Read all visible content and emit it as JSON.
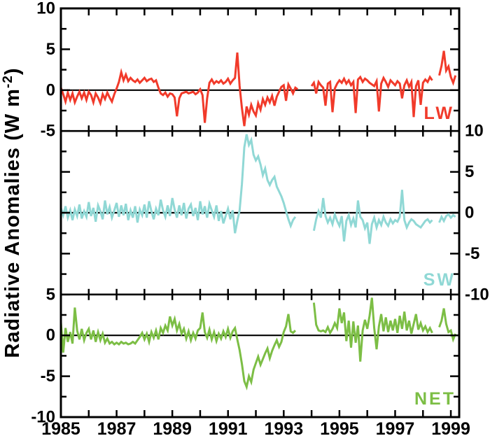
{
  "figure": {
    "background": "#ffffff"
  },
  "chart_data": {
    "type": "line",
    "title": "",
    "xlabel": "",
    "ylabel_parts": {
      "prefix": "Radiative Anomalies (W m",
      "superscript": "-2",
      "suffix": ")"
    },
    "x_start": 1985.0,
    "x_step_years": 0.0833333,
    "x_range": [
      1985.0,
      1999.3
    ],
    "x_major_tick_labels": [
      "1985",
      "1987",
      "1989",
      "1991",
      "1993",
      "1995",
      "1997",
      "1999"
    ],
    "x_major_ticks": [
      1985,
      1987,
      1989,
      1991,
      1993,
      1995,
      1997,
      1999
    ],
    "x_minor_tick_interval_years": 1,
    "grid": false,
    "legend_position": "inside-bottom-right-per-panel",
    "frame_color": "#000000",
    "zero_line": true,
    "panels": [
      {
        "name": "LW",
        "color": "#f13a2a",
        "y_min": -5,
        "y_max": 10,
        "y_major_tick_interval": 5,
        "y_minor_tick_interval": 2.5,
        "axis_label_side": "left",
        "axis_labeled_values": [
          10,
          5,
          0,
          -5
        ],
        "values": [
          0.3,
          -0.5,
          -1.4,
          -0.3,
          -1.2,
          -0.4,
          -1.5,
          -0.8,
          -0.2,
          -1.0,
          -0.3,
          -1.2,
          -0.2,
          -0.6,
          -1.5,
          -0.4,
          -0.9,
          -1.6,
          -0.5,
          -1.1,
          -0.3,
          -0.9,
          -1.4,
          -0.5,
          0.2,
          1.0,
          2.2,
          1.2,
          1.9,
          1.1,
          1.5,
          1.2,
          1.0,
          1.3,
          0.9,
          1.2,
          1.5,
          1.1,
          1.3,
          1.4,
          1.0,
          1.2,
          0.3,
          -0.4,
          -0.6,
          -0.3,
          -0.8,
          -0.4,
          -0.5,
          -0.9,
          -3.2,
          -1.0,
          -0.4,
          -0.3,
          -0.2,
          -0.4,
          -0.3,
          -0.2,
          -0.5,
          -0.3,
          0.1,
          -0.6,
          -4.0,
          -1.0,
          0.9,
          1.3,
          0.8,
          1.1,
          0.9,
          1.2,
          0.8,
          1.0,
          1.4,
          0.8,
          1.2,
          1.5,
          4.6,
          0.5,
          -2.2,
          -4.4,
          -2.0,
          -3.0,
          -1.8,
          -2.6,
          -3.1,
          -1.6,
          -2.4,
          -1.1,
          -1.8,
          -0.9,
          -1.5,
          -0.7,
          -1.9,
          -0.8,
          -0.2,
          0.4,
          0.6,
          -1.3,
          0.7,
          0.2,
          -0.4,
          0.3,
          0.1,
          null,
          null,
          null,
          null,
          null,
          0.5,
          0.9,
          -0.4,
          1.0,
          0.6,
          0.3,
          -1.9,
          0.8,
          1.0,
          -2.7,
          0.2,
          0.8,
          1.2,
          0.9,
          1.4,
          0.8,
          1.2,
          0.6,
          1.0,
          -2.8,
          1.3,
          1.6,
          1.0,
          1.4,
          1.2,
          0.9,
          0.7,
          0.5,
          1.1,
          -2.6,
          0.8,
          1.5,
          1.0,
          0.4,
          1.2,
          0.9,
          0.6,
          1.1,
          0.8,
          -1.0,
          0.6,
          1.2,
          0.4,
          1.0,
          -3.3,
          0.5,
          1.2,
          -1.8,
          0.9,
          1.3,
          1.0,
          1.6,
          1.2,
          null,
          null,
          1.8,
          3.0,
          4.8,
          2.4,
          2.9,
          1.6,
          0.9,
          1.8
        ]
      },
      {
        "name": "SW",
        "color": "#90d8d5",
        "y_min": -10,
        "y_max": 10,
        "y_major_tick_interval": 5,
        "y_minor_tick_interval": 2.5,
        "axis_label_side": "right",
        "axis_labeled_values": [
          10,
          5,
          0,
          -5,
          -10
        ],
        "values": [
          0.6,
          -0.3,
          0.8,
          -0.6,
          0.3,
          -0.9,
          0.4,
          -0.4,
          1.0,
          -0.7,
          0.2,
          -0.5,
          1.3,
          -0.4,
          0.6,
          -1.1,
          0.9,
          0.2,
          -0.8,
          1.5,
          -0.2,
          0.7,
          -0.6,
          0.3,
          1.2,
          -0.5,
          0.9,
          -0.3,
          1.1,
          -0.9,
          0.3,
          -0.6,
          0.8,
          -1.2,
          0.4,
          -0.3,
          1.0,
          -0.6,
          1.4,
          0.2,
          -0.8,
          0.5,
          -0.3,
          1.6,
          0.3,
          -0.5,
          0.9,
          -0.4,
          1.8,
          0.4,
          -0.6,
          0.9,
          -0.3,
          1.2,
          -0.7,
          0.5,
          1.0,
          -0.4,
          0.6,
          -0.9,
          1.4,
          -0.2,
          0.8,
          -0.6,
          1.1,
          0.3,
          -0.5,
          0.9,
          -1.0,
          0.2,
          -1.3,
          -0.4,
          0.5,
          -0.8,
          0.3,
          -2.5,
          -1.0,
          0.3,
          3.5,
          8.0,
          9.6,
          8.3,
          8.9,
          7.1,
          6.4,
          6.9,
          5.9,
          4.6,
          5.4,
          4.0,
          3.4,
          4.0,
          4.4,
          3.2,
          2.6,
          2.0,
          1.2,
          0.2,
          -0.8,
          -1.6,
          -0.9,
          -0.5,
          null,
          null,
          null,
          null,
          null,
          null,
          null,
          -2.2,
          -0.8,
          0.2,
          -0.6,
          1.8,
          -0.4,
          -1.2,
          -0.6,
          -1.4,
          -0.2,
          -1.0,
          -1.6,
          -0.4,
          -3.5,
          -1.0,
          -0.3,
          -1.5,
          -0.7,
          -1.8,
          1.5,
          -0.5,
          -0.9,
          -1.9,
          -1.2,
          -3.8,
          -1.4,
          -0.6,
          -1.8,
          -0.9,
          -1.5,
          -0.5,
          -1.2,
          -1.6,
          -0.8,
          -1.3,
          -0.9,
          -1.1,
          -0.5,
          2.8,
          -0.9,
          -1.8,
          -1.2,
          -0.8,
          -1.0,
          -1.4,
          -1.6,
          -1.8,
          -1.4,
          -1.0,
          -0.8,
          -1.2,
          -0.9,
          null,
          null,
          -1.2,
          -0.5,
          -1.0,
          -0.4,
          -0.2,
          -0.6,
          -0.3,
          -0.5
        ]
      },
      {
        "name": "NET",
        "color": "#7cbe45",
        "y_min": -10,
        "y_max": 5,
        "y_major_tick_interval": 5,
        "y_minor_tick_interval": 2.5,
        "axis_label_side": "left",
        "axis_labeled_values": [
          5,
          0,
          -5,
          -10
        ],
        "values": [
          1.6,
          -2.1,
          0.9,
          -0.8,
          0.4,
          -1.0,
          3.4,
          0.6,
          -0.5,
          0.8,
          -0.6,
          0.3,
          0.8,
          -0.5,
          0.6,
          -0.8,
          0.4,
          -0.6,
          0.2,
          -0.9,
          -0.4,
          -1.0,
          -0.8,
          -1.1,
          -0.9,
          -1.1,
          -0.8,
          -1.0,
          -0.9,
          -1.1,
          -1.0,
          -0.8,
          -1.0,
          -0.6,
          -0.2,
          0.3,
          -0.5,
          0.2,
          -0.8,
          0.4,
          -0.3,
          0.6,
          -0.5,
          0.9,
          0.3,
          1.2,
          0.6,
          2.3,
          1.2,
          2.0,
          0.6,
          1.4,
          0.2,
          0.8,
          -0.4,
          0.5,
          -0.6,
          0.3,
          -0.4,
          0.6,
          0.9,
          2.8,
          0.4,
          -0.3,
          0.7,
          -0.5,
          0.4,
          -0.7,
          0.2,
          -0.4,
          0.5,
          -0.2,
          0.8,
          -0.3,
          0.5,
          0.9,
          -0.5,
          -1.8,
          -3.5,
          -5.6,
          -6.3,
          -5.0,
          -5.7,
          -4.2,
          -3.4,
          -2.6,
          -3.6,
          -2.9,
          -2.2,
          -1.6,
          -2.8,
          -1.9,
          -1.2,
          -0.6,
          -1.4,
          -0.8,
          0.4,
          1.1,
          2.6,
          0.5,
          0.3,
          0.6,
          null,
          null,
          null,
          null,
          null,
          null,
          null,
          4.0,
          1.3,
          0.6,
          0.5,
          0.6,
          0.4,
          1.0,
          0.3,
          0.8,
          1.5,
          0.9,
          3.3,
          1.5,
          2.8,
          -0.7,
          1.8,
          -1.5,
          1.7,
          -0.9,
          1.2,
          -3.2,
          0.6,
          1.9,
          0.8,
          2.4,
          4.6,
          0.9,
          -1.7,
          1.1,
          2.6,
          0.5,
          2.2,
          0.4,
          1.8,
          0.6,
          2.0,
          0.3,
          2.4,
          0.8,
          2.9,
          0.6,
          1.8,
          0.2,
          1.4,
          2.6,
          0.7,
          1.5,
          0.6,
          1.1,
          0.4,
          0.9,
          0.3,
          null,
          null,
          1.0,
          1.8,
          3.3,
          1.4,
          0.4,
          0.6,
          -0.5,
          0.2
        ]
      }
    ]
  }
}
